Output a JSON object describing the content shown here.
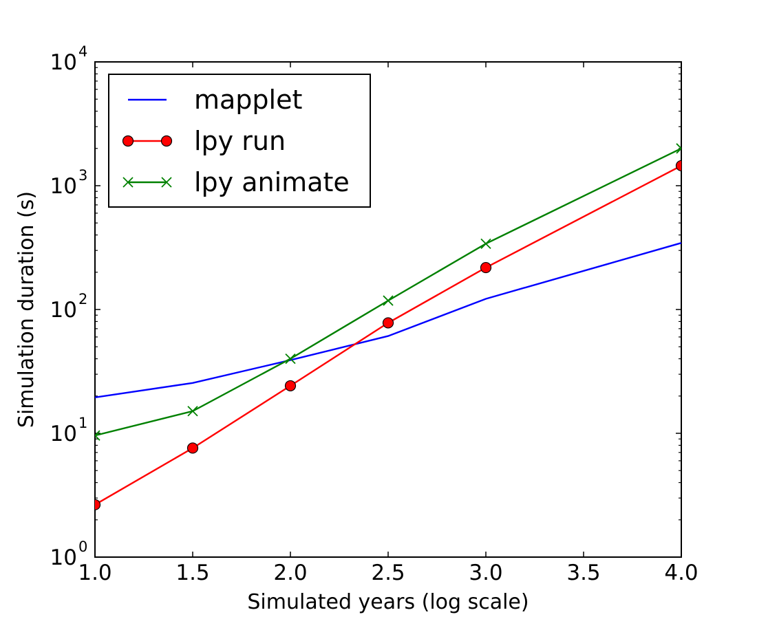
{
  "chart_data": {
    "type": "line",
    "title": "",
    "xlabel": "Simulated years (log scale)",
    "ylabel": "Simulation duration (s)",
    "xlim": [
      1.0,
      4.0
    ],
    "ylim": [
      1,
      10000
    ],
    "yscale": "log",
    "grid": false,
    "legend_position": "top-left",
    "x_ticks": [
      "1.0",
      "1.5",
      "2.0",
      "2.5",
      "3.0",
      "3.5",
      "4.0"
    ],
    "y_ticks": [
      {
        "base": "10",
        "exp": "0"
      },
      {
        "base": "10",
        "exp": "1"
      },
      {
        "base": "10",
        "exp": "2"
      },
      {
        "base": "10",
        "exp": "3"
      },
      {
        "base": "10",
        "exp": "4"
      }
    ],
    "series": [
      {
        "name": "mapplet",
        "color": "#0000ff",
        "marker": "none",
        "x": [
          1.0,
          1.5,
          2.0,
          2.5,
          3.0,
          4.0
        ],
        "y": [
          19.5,
          25.5,
          39,
          61,
          122,
          345
        ]
      },
      {
        "name": "lpy run",
        "color": "#ff0000",
        "marker": "circle",
        "x": [
          1.0,
          1.5,
          2.0,
          2.5,
          3.0,
          4.0
        ],
        "y": [
          2.65,
          7.6,
          24.2,
          78,
          218,
          1450
        ]
      },
      {
        "name": "lpy animate",
        "color": "#008000",
        "marker": "x",
        "x": [
          1.0,
          1.5,
          2.0,
          2.5,
          3.0,
          4.0
        ],
        "y": [
          9.6,
          15.1,
          40,
          118,
          340,
          2000
        ]
      }
    ]
  }
}
